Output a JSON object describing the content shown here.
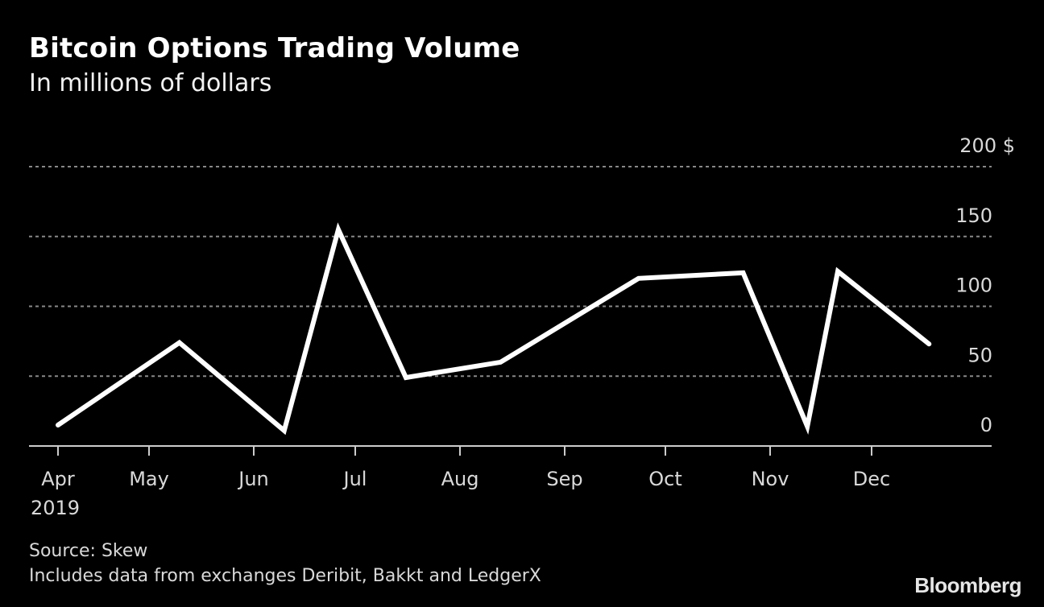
{
  "header": {
    "title": "Bitcoin Options Trading Volume",
    "subtitle": "In millions of dollars"
  },
  "footer": {
    "source": "Source: Skew",
    "note": "Includes data from exchanges Deribit, Bakkt and LedgerX",
    "brand": "Bloomberg"
  },
  "colors": {
    "background": "#000000",
    "line": "#ffffff",
    "grid": "#888888",
    "text": "#d9d9d9"
  },
  "chart_data": {
    "type": "line",
    "title": "Bitcoin Options Trading Volume",
    "subtitle": "In millions of dollars",
    "xlabel": "",
    "ylabel": "",
    "y_unit": "$",
    "ylim": [
      0,
      200
    ],
    "yticks": [
      0,
      50,
      100,
      150,
      200
    ],
    "ytick_labels": [
      "0",
      "50",
      "100",
      "150",
      "200 $"
    ],
    "xticks": [
      "Apr",
      "May",
      "Jun",
      "Jul",
      "Aug",
      "Sep",
      "Oct",
      "Nov",
      "Dec"
    ],
    "x_year_label": "2019",
    "grid": "horizontal dotted",
    "legend": null,
    "series": [
      {
        "name": "Trading volume",
        "x": [
          "2019-04-01",
          "2019-05-10",
          "2019-06-10",
          "2019-06-26",
          "2019-07-16",
          "2019-08-13",
          "2019-09-23",
          "2019-10-24",
          "2019-11-12",
          "2019-11-21",
          "2019-12-18"
        ],
        "values": [
          15,
          74,
          11,
          155,
          49,
          60,
          120,
          124,
          14,
          125,
          73
        ]
      }
    ],
    "source": "Skew",
    "note": "Includes data from exchanges Deribit, Bakkt and LedgerX"
  }
}
